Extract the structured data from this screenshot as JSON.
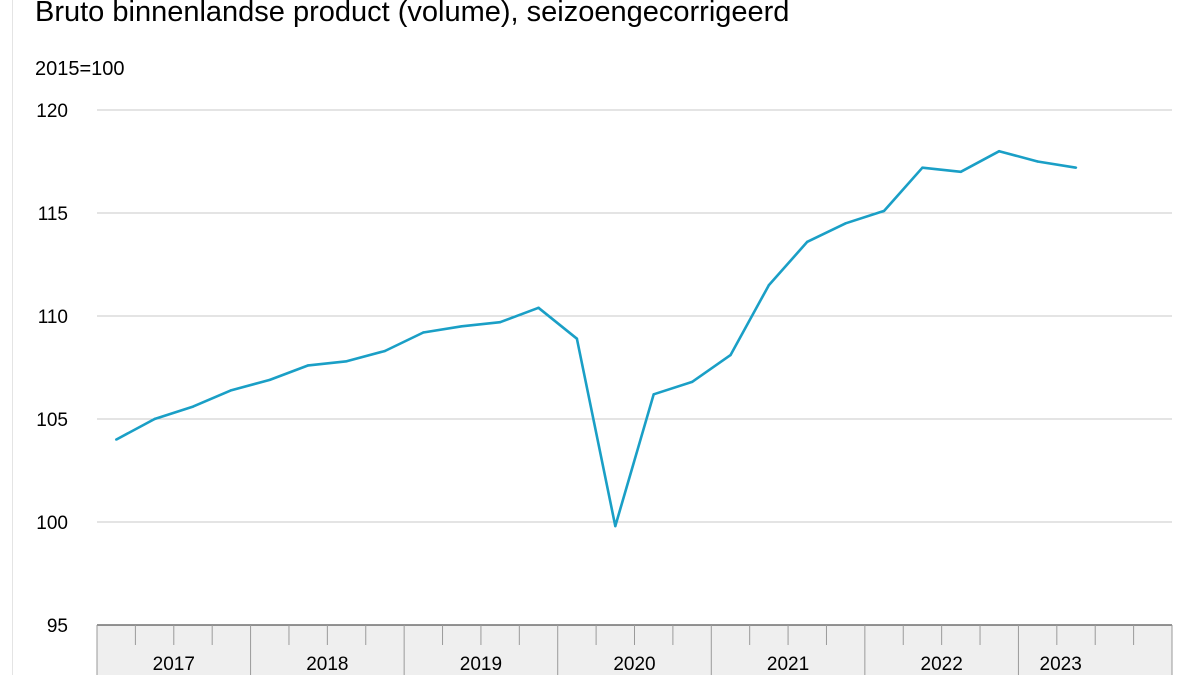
{
  "chart_data": {
    "type": "line",
    "title": "Bruto binnenlandse product (volume), seizoengecorrigeerd",
    "subtitle": "2015=100",
    "ylim": [
      95,
      120
    ],
    "yticks": [
      "95",
      "100",
      "105",
      "110",
      "115",
      "120"
    ],
    "ytick_values": [
      95,
      100,
      105,
      110,
      115,
      120
    ],
    "grid": true,
    "x": [
      "2017-Q1",
      "2017-Q2",
      "2017-Q3",
      "2017-Q4",
      "2018-Q1",
      "2018-Q2",
      "2018-Q3",
      "2018-Q4",
      "2019-Q1",
      "2019-Q2",
      "2019-Q3",
      "2019-Q4",
      "2020-Q1",
      "2020-Q2",
      "2020-Q3",
      "2020-Q4",
      "2021-Q1",
      "2021-Q2",
      "2021-Q3",
      "2021-Q4",
      "2022-Q1",
      "2022-Q2",
      "2022-Q3",
      "2022-Q4",
      "2023-Q1",
      "2023-Q2"
    ],
    "years": [
      {
        "label": "2017",
        "quarters": 4
      },
      {
        "label": "2018",
        "quarters": 4
      },
      {
        "label": "2019",
        "quarters": 4
      },
      {
        "label": "2020",
        "quarters": 4
      },
      {
        "label": "2021",
        "quarters": 4
      },
      {
        "label": "2022",
        "quarters": 4
      },
      {
        "label": "2023",
        "quarters": 2
      }
    ],
    "series": [
      {
        "values": [
          104.0,
          105.0,
          105.6,
          106.4,
          106.9,
          107.6,
          107.8,
          108.3,
          109.2,
          109.5,
          109.7,
          110.4,
          108.9,
          99.8,
          106.2,
          106.8,
          108.1,
          111.5,
          113.6,
          114.5,
          115.1,
          117.2,
          117.0,
          118.0,
          117.5,
          117.2
        ]
      }
    ],
    "colors": {
      "line": "#1a9fc6",
      "grid": "#c8c8c8",
      "axis_band": "#efefef",
      "axis_line": "#9a9a9a"
    }
  }
}
